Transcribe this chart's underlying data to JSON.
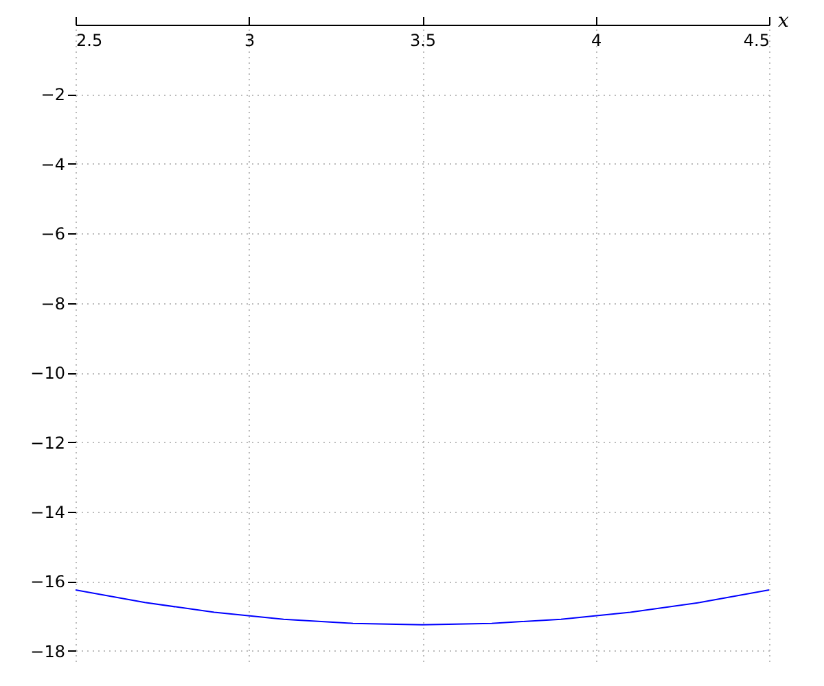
{
  "chart_data": {
    "type": "line",
    "xlabel": "x",
    "x": [
      2.5,
      2.7,
      2.9,
      3.1,
      3.3,
      3.5,
      3.7,
      3.9,
      4.1,
      4.3,
      4.5
    ],
    "series": [
      {
        "color": "#0000ff",
        "values": [
          -16.25,
          -16.61,
          -16.89,
          -17.09,
          -17.21,
          -17.25,
          -17.21,
          -17.09,
          -16.89,
          -16.61,
          -16.25
        ]
      }
    ],
    "xlim": [
      2.5,
      4.5
    ],
    "xticks": [
      2.5,
      3,
      3.5,
      4,
      4.5
    ],
    "ylim": [
      -18.3,
      0
    ],
    "yticks": [
      -2,
      -4,
      -6,
      -8,
      -10,
      -12,
      -14,
      -16,
      -18
    ],
    "grid": true,
    "marker": "none",
    "line_style": "solid"
  }
}
